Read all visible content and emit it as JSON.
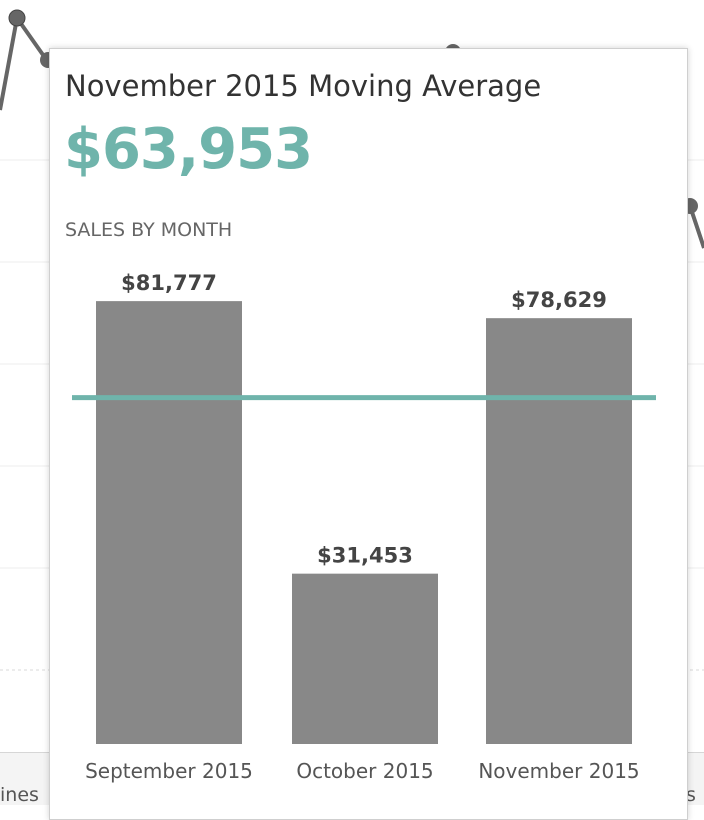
{
  "tooltip": {
    "title": "November 2015 Moving Average",
    "value": "$63,953",
    "section_label": "SALES BY MONTH"
  },
  "background": {
    "left_label": "ines",
    "right_label": "s"
  },
  "colors": {
    "accent": "#6fb4ab",
    "bar": "#888888",
    "text_dark": "#444444",
    "line_dark": "#666666"
  },
  "chart_data": {
    "type": "bar",
    "categories": [
      "September 2015",
      "October 2015",
      "November 2015"
    ],
    "values": [
      81777,
      31453,
      78629
    ],
    "value_labels": [
      "$81,777",
      "$31,453",
      "$78,629"
    ],
    "reference_line": 63953,
    "ylim": [
      0,
      89000
    ],
    "title": "SALES BY MONTH"
  }
}
